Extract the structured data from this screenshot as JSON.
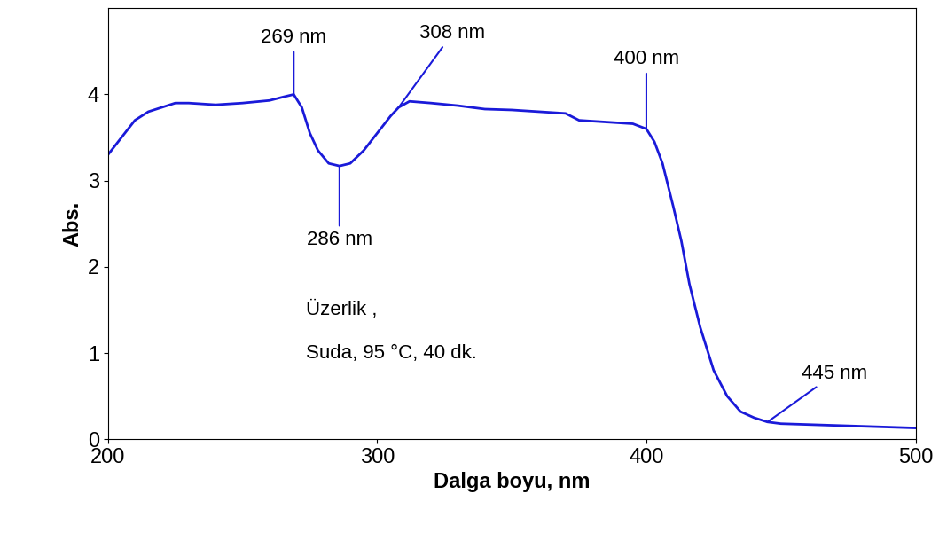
{
  "chart_data": {
    "type": "line",
    "x_label": "Dalga boyu, nm",
    "y_label": "Abs.",
    "series": [
      {
        "name": "Üzerlik",
        "color": "#1a1ad9",
        "x": [
          200,
          205,
          210,
          215,
          220,
          225,
          230,
          240,
          250,
          260,
          265,
          269,
          272,
          275,
          278,
          282,
          286,
          290,
          295,
          300,
          305,
          308,
          312,
          320,
          330,
          340,
          350,
          360,
          370,
          375,
          385,
          395,
          400,
          403,
          406,
          410,
          413,
          416,
          420,
          425,
          430,
          435,
          440,
          445,
          450,
          460,
          470,
          480,
          490,
          500
        ],
        "values": [
          3.3,
          3.5,
          3.7,
          3.8,
          3.85,
          3.9,
          3.9,
          3.88,
          3.9,
          3.93,
          3.97,
          4.0,
          3.85,
          3.55,
          3.35,
          3.2,
          3.17,
          3.2,
          3.35,
          3.55,
          3.75,
          3.85,
          3.92,
          3.9,
          3.87,
          3.83,
          3.82,
          3.8,
          3.78,
          3.7,
          3.68,
          3.66,
          3.6,
          3.45,
          3.2,
          2.7,
          2.3,
          1.8,
          1.3,
          0.8,
          0.5,
          0.32,
          0.25,
          0.2,
          0.18,
          0.17,
          0.16,
          0.15,
          0.14,
          0.13
        ]
      }
    ],
    "annotations": [
      {
        "text": "269 nm",
        "x": 269,
        "y": 4.0
      },
      {
        "text": "308 nm",
        "x": 308,
        "y": 3.85
      },
      {
        "text": "400 nm",
        "x": 400,
        "y": 3.6
      },
      {
        "text": "286 nm",
        "x": 286,
        "y": 3.17
      },
      {
        "text": "445 nm",
        "x": 445,
        "y": 0.2
      }
    ],
    "notes": [
      "Üzerlik ,",
      "Suda, 95 °C, 40 dk."
    ],
    "xlim": [
      200,
      500
    ],
    "xticks": [
      200,
      300,
      400,
      500
    ],
    "ylim": [
      0,
      5
    ],
    "yticks": [
      0,
      1,
      2,
      3,
      4
    ]
  }
}
